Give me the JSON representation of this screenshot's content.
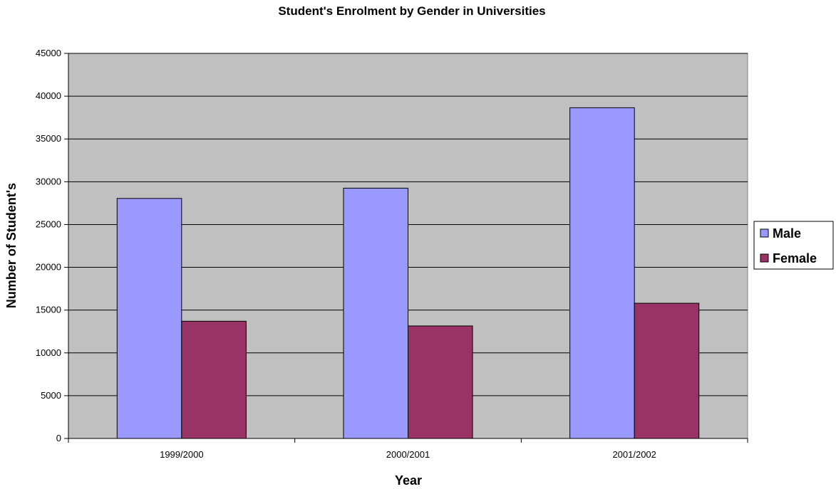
{
  "chart_data": {
    "type": "bar",
    "title": "Student's Enrolment by Gender in Universities",
    "xlabel": "Year",
    "ylabel": "Number of Student's",
    "categories": [
      "1999/2000",
      "2000/2001",
      "2001/2002"
    ],
    "series": [
      {
        "name": "Male",
        "color": "#9999ff",
        "values": [
          28050,
          29250,
          38650
        ]
      },
      {
        "name": "Female",
        "color": "#993366",
        "values": [
          13700,
          13150,
          15800
        ]
      }
    ],
    "ylim": [
      0,
      45000
    ],
    "yticks": [
      0,
      5000,
      10000,
      15000,
      20000,
      25000,
      30000,
      35000,
      40000,
      45000
    ],
    "grid": true,
    "plot_background": "#c0c0c0",
    "legend": "right"
  }
}
